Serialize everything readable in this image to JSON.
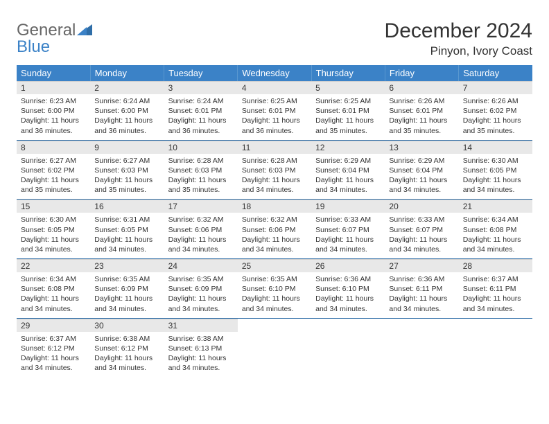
{
  "logo": {
    "text1": "General",
    "text2": "Blue"
  },
  "header": {
    "month": "December 2024",
    "location": "Pinyon, Ivory Coast"
  },
  "style": {
    "header_bg": "#3b82c7",
    "header_text": "#ffffff",
    "daynum_bg": "#e8e8e8",
    "row_border": "#2f6ea8",
    "body_font_size": 10.5,
    "month_font_size": 30,
    "location_font_size": 17,
    "logo_accent": "#3b82c7"
  },
  "weekdays": [
    "Sunday",
    "Monday",
    "Tuesday",
    "Wednesday",
    "Thursday",
    "Friday",
    "Saturday"
  ],
  "weeks": [
    [
      {
        "day": "1",
        "sunrise": "Sunrise: 6:23 AM",
        "sunset": "Sunset: 6:00 PM",
        "daylight": "Daylight: 11 hours and 36 minutes."
      },
      {
        "day": "2",
        "sunrise": "Sunrise: 6:24 AM",
        "sunset": "Sunset: 6:00 PM",
        "daylight": "Daylight: 11 hours and 36 minutes."
      },
      {
        "day": "3",
        "sunrise": "Sunrise: 6:24 AM",
        "sunset": "Sunset: 6:01 PM",
        "daylight": "Daylight: 11 hours and 36 minutes."
      },
      {
        "day": "4",
        "sunrise": "Sunrise: 6:25 AM",
        "sunset": "Sunset: 6:01 PM",
        "daylight": "Daylight: 11 hours and 36 minutes."
      },
      {
        "day": "5",
        "sunrise": "Sunrise: 6:25 AM",
        "sunset": "Sunset: 6:01 PM",
        "daylight": "Daylight: 11 hours and 35 minutes."
      },
      {
        "day": "6",
        "sunrise": "Sunrise: 6:26 AM",
        "sunset": "Sunset: 6:01 PM",
        "daylight": "Daylight: 11 hours and 35 minutes."
      },
      {
        "day": "7",
        "sunrise": "Sunrise: 6:26 AM",
        "sunset": "Sunset: 6:02 PM",
        "daylight": "Daylight: 11 hours and 35 minutes."
      }
    ],
    [
      {
        "day": "8",
        "sunrise": "Sunrise: 6:27 AM",
        "sunset": "Sunset: 6:02 PM",
        "daylight": "Daylight: 11 hours and 35 minutes."
      },
      {
        "day": "9",
        "sunrise": "Sunrise: 6:27 AM",
        "sunset": "Sunset: 6:03 PM",
        "daylight": "Daylight: 11 hours and 35 minutes."
      },
      {
        "day": "10",
        "sunrise": "Sunrise: 6:28 AM",
        "sunset": "Sunset: 6:03 PM",
        "daylight": "Daylight: 11 hours and 35 minutes."
      },
      {
        "day": "11",
        "sunrise": "Sunrise: 6:28 AM",
        "sunset": "Sunset: 6:03 PM",
        "daylight": "Daylight: 11 hours and 34 minutes."
      },
      {
        "day": "12",
        "sunrise": "Sunrise: 6:29 AM",
        "sunset": "Sunset: 6:04 PM",
        "daylight": "Daylight: 11 hours and 34 minutes."
      },
      {
        "day": "13",
        "sunrise": "Sunrise: 6:29 AM",
        "sunset": "Sunset: 6:04 PM",
        "daylight": "Daylight: 11 hours and 34 minutes."
      },
      {
        "day": "14",
        "sunrise": "Sunrise: 6:30 AM",
        "sunset": "Sunset: 6:05 PM",
        "daylight": "Daylight: 11 hours and 34 minutes."
      }
    ],
    [
      {
        "day": "15",
        "sunrise": "Sunrise: 6:30 AM",
        "sunset": "Sunset: 6:05 PM",
        "daylight": "Daylight: 11 hours and 34 minutes."
      },
      {
        "day": "16",
        "sunrise": "Sunrise: 6:31 AM",
        "sunset": "Sunset: 6:05 PM",
        "daylight": "Daylight: 11 hours and 34 minutes."
      },
      {
        "day": "17",
        "sunrise": "Sunrise: 6:32 AM",
        "sunset": "Sunset: 6:06 PM",
        "daylight": "Daylight: 11 hours and 34 minutes."
      },
      {
        "day": "18",
        "sunrise": "Sunrise: 6:32 AM",
        "sunset": "Sunset: 6:06 PM",
        "daylight": "Daylight: 11 hours and 34 minutes."
      },
      {
        "day": "19",
        "sunrise": "Sunrise: 6:33 AM",
        "sunset": "Sunset: 6:07 PM",
        "daylight": "Daylight: 11 hours and 34 minutes."
      },
      {
        "day": "20",
        "sunrise": "Sunrise: 6:33 AM",
        "sunset": "Sunset: 6:07 PM",
        "daylight": "Daylight: 11 hours and 34 minutes."
      },
      {
        "day": "21",
        "sunrise": "Sunrise: 6:34 AM",
        "sunset": "Sunset: 6:08 PM",
        "daylight": "Daylight: 11 hours and 34 minutes."
      }
    ],
    [
      {
        "day": "22",
        "sunrise": "Sunrise: 6:34 AM",
        "sunset": "Sunset: 6:08 PM",
        "daylight": "Daylight: 11 hours and 34 minutes."
      },
      {
        "day": "23",
        "sunrise": "Sunrise: 6:35 AM",
        "sunset": "Sunset: 6:09 PM",
        "daylight": "Daylight: 11 hours and 34 minutes."
      },
      {
        "day": "24",
        "sunrise": "Sunrise: 6:35 AM",
        "sunset": "Sunset: 6:09 PM",
        "daylight": "Daylight: 11 hours and 34 minutes."
      },
      {
        "day": "25",
        "sunrise": "Sunrise: 6:35 AM",
        "sunset": "Sunset: 6:10 PM",
        "daylight": "Daylight: 11 hours and 34 minutes."
      },
      {
        "day": "26",
        "sunrise": "Sunrise: 6:36 AM",
        "sunset": "Sunset: 6:10 PM",
        "daylight": "Daylight: 11 hours and 34 minutes."
      },
      {
        "day": "27",
        "sunrise": "Sunrise: 6:36 AM",
        "sunset": "Sunset: 6:11 PM",
        "daylight": "Daylight: 11 hours and 34 minutes."
      },
      {
        "day": "28",
        "sunrise": "Sunrise: 6:37 AM",
        "sunset": "Sunset: 6:11 PM",
        "daylight": "Daylight: 11 hours and 34 minutes."
      }
    ],
    [
      {
        "day": "29",
        "sunrise": "Sunrise: 6:37 AM",
        "sunset": "Sunset: 6:12 PM",
        "daylight": "Daylight: 11 hours and 34 minutes."
      },
      {
        "day": "30",
        "sunrise": "Sunrise: 6:38 AM",
        "sunset": "Sunset: 6:12 PM",
        "daylight": "Daylight: 11 hours and 34 minutes."
      },
      {
        "day": "31",
        "sunrise": "Sunrise: 6:38 AM",
        "sunset": "Sunset: 6:13 PM",
        "daylight": "Daylight: 11 hours and 34 minutes."
      },
      null,
      null,
      null,
      null
    ]
  ]
}
